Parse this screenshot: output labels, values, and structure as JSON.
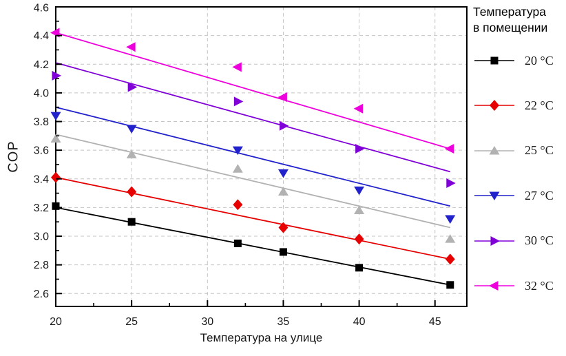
{
  "chart_data": {
    "type": "scatter",
    "xlabel": "Температура на улице",
    "ylabel": "COP",
    "legend_title": [
      "Температура",
      "в помещении"
    ],
    "xlim": [
      20,
      47.1
    ],
    "ylim": [
      2.51,
      4.6
    ],
    "x_major_ticks": [
      20,
      25,
      30,
      35,
      40,
      45
    ],
    "x_minor_ticks": [
      22.5,
      27.5,
      32.5,
      37.5,
      42.5
    ],
    "y_major_ticks": [
      2.6,
      2.8,
      3.0,
      3.2,
      3.4,
      3.6,
      3.8,
      4.0,
      4.2,
      4.4,
      4.6
    ],
    "y_minor_step": 0.1,
    "grid": "dashed",
    "grid_color": "#c4c4c4",
    "axis_color": "#000000",
    "x": [
      20,
      25,
      32,
      35,
      40,
      46
    ],
    "series": [
      {
        "name": "20 °C",
        "color": "#000000",
        "marker": "square",
        "values": [
          3.21,
          3.1,
          2.95,
          2.89,
          2.78,
          2.66
        ],
        "fit_line": {
          "x": [
            20,
            46
          ],
          "y": [
            3.2,
            2.66
          ]
        }
      },
      {
        "name": "22 °C",
        "color": "#e60000",
        "marker": "diamond",
        "values": [
          3.41,
          3.31,
          3.22,
          3.06,
          2.98,
          2.84
        ],
        "fit_line": {
          "x": [
            20,
            46
          ],
          "y": [
            3.41,
            2.84
          ]
        }
      },
      {
        "name": "25 °C",
        "color": "#b2b2b2",
        "marker": "triangle-up",
        "values": [
          3.68,
          3.57,
          3.47,
          3.31,
          3.18,
          2.98
        ],
        "fit_line": {
          "x": [
            20,
            46
          ],
          "y": [
            3.71,
            3.06
          ]
        }
      },
      {
        "name": "27 °C",
        "color": "#2222cc",
        "marker": "triangle-down",
        "values": [
          3.84,
          3.75,
          3.6,
          3.44,
          3.32,
          3.12
        ],
        "fit_line": {
          "x": [
            20,
            46
          ],
          "y": [
            3.9,
            3.21
          ]
        }
      },
      {
        "name": "30 °C",
        "color": "#8000d8",
        "marker": "triangle-right",
        "values": [
          4.12,
          4.04,
          3.94,
          3.77,
          3.61,
          3.37
        ],
        "fit_line": {
          "x": [
            20,
            46
          ],
          "y": [
            4.21,
            3.45
          ]
        }
      },
      {
        "name": "32 °C",
        "color": "#ee00dd",
        "marker": "triangle-left",
        "values": [
          4.42,
          4.32,
          4.18,
          3.97,
          3.89,
          3.61
        ],
        "fit_line": {
          "x": [
            20,
            46
          ],
          "y": [
            4.42,
            3.61
          ]
        }
      }
    ]
  }
}
